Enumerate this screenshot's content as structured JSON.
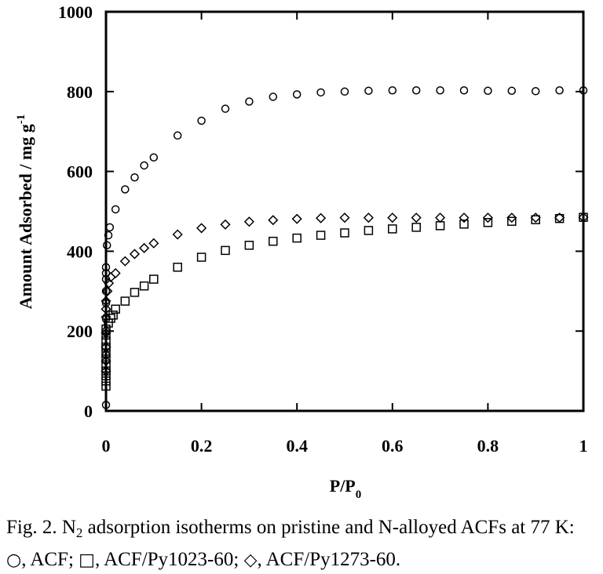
{
  "chart_data": {
    "type": "scatter",
    "xlabel": {
      "main": "P/P",
      "sub": "0"
    },
    "ylabel": {
      "main": "Amount Adsorbed / mg g",
      "sup": "-1"
    },
    "xlim": [
      0,
      1
    ],
    "ylim": [
      0,
      1000
    ],
    "xticks": [
      0,
      0.2,
      0.4,
      0.6,
      0.8,
      1
    ],
    "xtick_labels": [
      "0",
      "0.2",
      "0.4",
      "0.6",
      "0.8",
      "1"
    ],
    "yticks": [
      0,
      200,
      400,
      600,
      800,
      1000
    ],
    "ytick_labels": [
      "0",
      "200",
      "400",
      "600",
      "800",
      "1000"
    ],
    "grid": false,
    "legend": "none",
    "series": [
      {
        "marker": "circle",
        "points": [
          [
            0.0,
            15
          ],
          [
            0.0,
            140
          ],
          [
            0.0,
            200
          ],
          [
            0.0,
            230
          ],
          [
            0.0,
            270
          ],
          [
            0.0,
            300
          ],
          [
            0.0,
            330
          ],
          [
            0.0,
            345
          ],
          [
            0.0,
            360
          ],
          [
            0.002,
            415
          ],
          [
            0.005,
            440
          ],
          [
            0.008,
            460
          ],
          [
            0.02,
            505
          ],
          [
            0.04,
            555
          ],
          [
            0.06,
            585
          ],
          [
            0.08,
            615
          ],
          [
            0.1,
            635
          ],
          [
            0.15,
            690
          ],
          [
            0.2,
            727
          ],
          [
            0.25,
            757
          ],
          [
            0.3,
            775
          ],
          [
            0.35,
            787
          ],
          [
            0.4,
            793
          ],
          [
            0.45,
            798
          ],
          [
            0.5,
            800
          ],
          [
            0.55,
            802
          ],
          [
            0.6,
            803
          ],
          [
            0.65,
            803
          ],
          [
            0.7,
            803
          ],
          [
            0.75,
            803
          ],
          [
            0.8,
            802
          ],
          [
            0.85,
            802
          ],
          [
            0.9,
            801
          ],
          [
            0.95,
            803
          ],
          [
            1.0,
            803
          ]
        ]
      },
      {
        "marker": "square",
        "points": [
          [
            0.0,
            62
          ],
          [
            0.0,
            75
          ],
          [
            0.0,
            88
          ],
          [
            0.0,
            100
          ],
          [
            0.0,
            115
          ],
          [
            0.0,
            130
          ],
          [
            0.0,
            145
          ],
          [
            0.0,
            160
          ],
          [
            0.0,
            175
          ],
          [
            0.0,
            190
          ],
          [
            0.0,
            205
          ],
          [
            0.005,
            220
          ],
          [
            0.01,
            232
          ],
          [
            0.015,
            240
          ],
          [
            0.02,
            255
          ],
          [
            0.04,
            275
          ],
          [
            0.06,
            297
          ],
          [
            0.08,
            313
          ],
          [
            0.1,
            330
          ],
          [
            0.15,
            360
          ],
          [
            0.2,
            385
          ],
          [
            0.25,
            402
          ],
          [
            0.3,
            415
          ],
          [
            0.35,
            425
          ],
          [
            0.4,
            433
          ],
          [
            0.45,
            440
          ],
          [
            0.5,
            446
          ],
          [
            0.55,
            452
          ],
          [
            0.6,
            456
          ],
          [
            0.65,
            460
          ],
          [
            0.7,
            464
          ],
          [
            0.75,
            468
          ],
          [
            0.8,
            472
          ],
          [
            0.85,
            475
          ],
          [
            0.9,
            479
          ],
          [
            0.95,
            482
          ],
          [
            1.0,
            485
          ]
        ]
      },
      {
        "marker": "diamond",
        "points": [
          [
            0.0,
            100
          ],
          [
            0.0,
            125
          ],
          [
            0.0,
            160
          ],
          [
            0.0,
            195
          ],
          [
            0.0,
            235
          ],
          [
            0.0,
            255
          ],
          [
            0.0,
            275
          ],
          [
            0.003,
            300
          ],
          [
            0.006,
            320
          ],
          [
            0.01,
            335
          ],
          [
            0.02,
            345
          ],
          [
            0.04,
            375
          ],
          [
            0.06,
            393
          ],
          [
            0.08,
            408
          ],
          [
            0.1,
            420
          ],
          [
            0.15,
            442
          ],
          [
            0.2,
            458
          ],
          [
            0.25,
            467
          ],
          [
            0.3,
            474
          ],
          [
            0.35,
            478
          ],
          [
            0.4,
            481
          ],
          [
            0.45,
            483
          ],
          [
            0.5,
            484
          ],
          [
            0.55,
            484
          ],
          [
            0.6,
            484
          ],
          [
            0.65,
            484
          ],
          [
            0.7,
            484
          ],
          [
            0.75,
            484
          ],
          [
            0.8,
            484
          ],
          [
            0.85,
            484
          ],
          [
            0.9,
            484
          ],
          [
            0.95,
            484
          ],
          [
            1.0,
            485
          ]
        ]
      }
    ]
  },
  "caption": {
    "fig": "Fig. 2. N",
    "sub": "2",
    "text1": " adsorption isotherms on pristine and N-alloyed ACFs at 77 K: ",
    "sym1": "○",
    "text2": ", ACF; ",
    "sym2": "□",
    "text3": ", ACF/Py1023-60; ",
    "sym3": "◇",
    "text4": ", ACF/Py1273-60."
  }
}
